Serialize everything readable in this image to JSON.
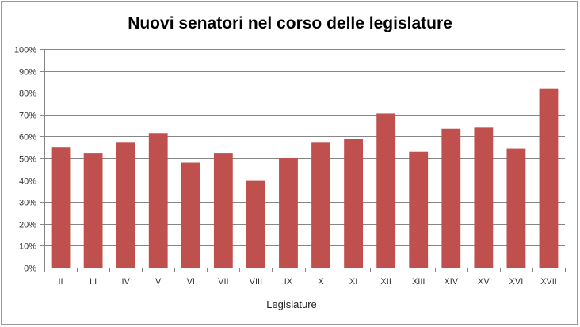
{
  "chart_data": {
    "type": "bar",
    "title": "Nuovi senatori nel corso delle legislature",
    "xlabel": "Legislature",
    "ylabel": "",
    "categories": [
      "II",
      "III",
      "IV",
      "V",
      "VI",
      "VII",
      "VIII",
      "IX",
      "X",
      "XI",
      "XII",
      "XIII",
      "XIV",
      "XV",
      "XVI",
      "XVII"
    ],
    "values": [
      55,
      52.5,
      57.5,
      61.5,
      48,
      52.5,
      40,
      50,
      57.5,
      59,
      70.5,
      53,
      63.5,
      64,
      54.5,
      82
    ],
    "ylim": [
      0,
      100
    ],
    "yticks": [
      "0%",
      "10%",
      "20%",
      "30%",
      "40%",
      "50%",
      "60%",
      "70%",
      "80%",
      "90%",
      "100%"
    ],
    "grid": true,
    "legend": "none",
    "colors": {
      "bar": "#c0504d",
      "grid": "#868686",
      "axis": "#868686"
    }
  }
}
